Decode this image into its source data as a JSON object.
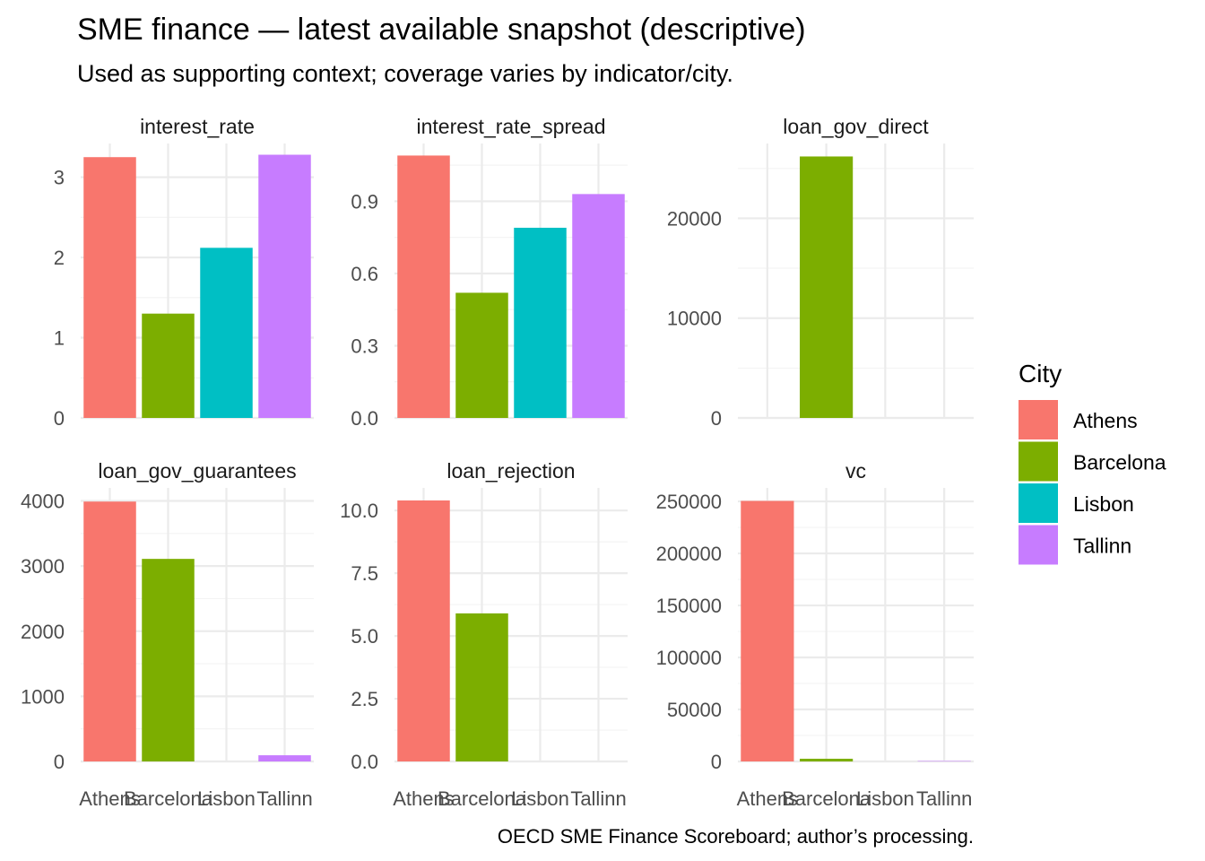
{
  "title": "SME finance — latest available snapshot (descriptive)",
  "subtitle": "Used as supporting context; coverage varies by indicator/city.",
  "caption": "OECD SME Finance Scoreboard; author’s processing.",
  "legend": {
    "title": "City",
    "position": "right",
    "items": [
      {
        "label": "Athens",
        "color": "#F8766D"
      },
      {
        "label": "Barcelona",
        "color": "#7CAE00"
      },
      {
        "label": "Lisbon",
        "color": "#00BFC4"
      },
      {
        "label": "Tallinn",
        "color": "#C77CFF"
      }
    ]
  },
  "chart_data": [
    {
      "type": "bar",
      "facet": "interest_rate",
      "categories": [
        "Athens",
        "Barcelona",
        "Lisbon",
        "Tallinn"
      ],
      "values": [
        3.25,
        1.3,
        2.12,
        3.28
      ],
      "ylim": [
        0,
        3.42
      ],
      "yticks": [
        0,
        1,
        2,
        3
      ],
      "ytick_labels": [
        "0",
        "1",
        "2",
        "3"
      ],
      "grid": true
    },
    {
      "type": "bar",
      "facet": "interest_rate_spread",
      "categories": [
        "Athens",
        "Barcelona",
        "Lisbon",
        "Tallinn"
      ],
      "values": [
        1.09,
        0.52,
        0.79,
        0.93
      ],
      "ylim": [
        0,
        1.14
      ],
      "yticks": [
        0,
        0.3,
        0.6,
        0.9
      ],
      "ytick_labels": [
        "0.0",
        "0.3",
        "0.6",
        "0.9"
      ],
      "grid": true
    },
    {
      "type": "bar",
      "facet": "loan_gov_direct",
      "categories": [
        "Athens",
        "Barcelona",
        "Lisbon",
        "Tallinn"
      ],
      "values": [
        null,
        26200,
        null,
        null
      ],
      "ylim": [
        0,
        27500
      ],
      "yticks": [
        0,
        10000,
        20000
      ],
      "ytick_labels": [
        "0",
        "10000",
        "20000"
      ],
      "grid": true
    },
    {
      "type": "bar",
      "facet": "loan_gov_guarantees",
      "categories": [
        "Athens",
        "Barcelona",
        "Lisbon",
        "Tallinn"
      ],
      "values": [
        3990,
        3110,
        null,
        95
      ],
      "ylim": [
        0,
        4200
      ],
      "yticks": [
        0,
        1000,
        2000,
        3000,
        4000
      ],
      "ytick_labels": [
        "0",
        "1000",
        "2000",
        "3000",
        "4000"
      ],
      "grid": true
    },
    {
      "type": "bar",
      "facet": "loan_rejection",
      "categories": [
        "Athens",
        "Barcelona",
        "Lisbon",
        "Tallinn"
      ],
      "values": [
        10.4,
        5.9,
        null,
        null
      ],
      "ylim": [
        0,
        10.9
      ],
      "yticks": [
        0,
        2.5,
        5,
        7.5,
        10
      ],
      "ytick_labels": [
        "0.0",
        "2.5",
        "5.0",
        "7.5",
        "10.0"
      ],
      "grid": true
    },
    {
      "type": "bar",
      "facet": "vc",
      "categories": [
        "Athens",
        "Barcelona",
        "Lisbon",
        "Tallinn"
      ],
      "values": [
        250500,
        2600,
        null,
        400
      ],
      "ylim": [
        0,
        263000
      ],
      "yticks": [
        0,
        50000,
        100000,
        150000,
        200000,
        250000
      ],
      "ytick_labels": [
        "0",
        "50000",
        "100000",
        "150000",
        "200000",
        "250000"
      ],
      "grid": true
    }
  ]
}
